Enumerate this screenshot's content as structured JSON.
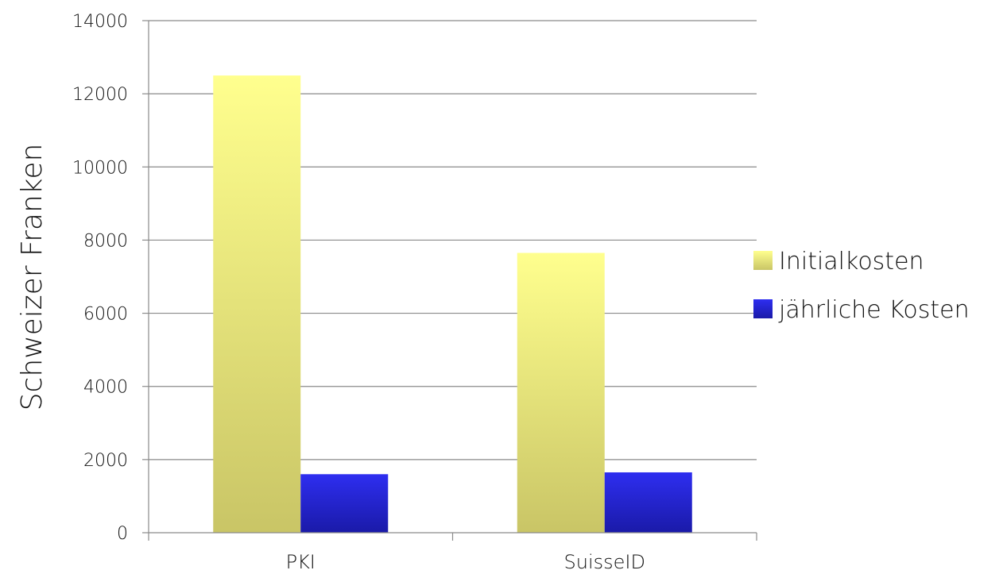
{
  "chart_data": {
    "type": "bar",
    "categories": [
      "PKI",
      "SuisseID"
    ],
    "series": [
      {
        "name": "Initialkosten",
        "values": [
          12500,
          7650
        ],
        "color": "#f2ec8a"
      },
      {
        "name": "jährliche Kosten",
        "values": [
          1600,
          1650
        ],
        "color": "#2a2ae0"
      }
    ],
    "title": "",
    "xlabel": "",
    "ylabel": "Schweizer Franken",
    "ylim": [
      0,
      14000
    ],
    "yticks": [
      "0",
      "2000",
      "4000",
      "6000",
      "8000",
      "10000",
      "12000",
      "14000"
    ],
    "grid": true,
    "legend": "right"
  }
}
